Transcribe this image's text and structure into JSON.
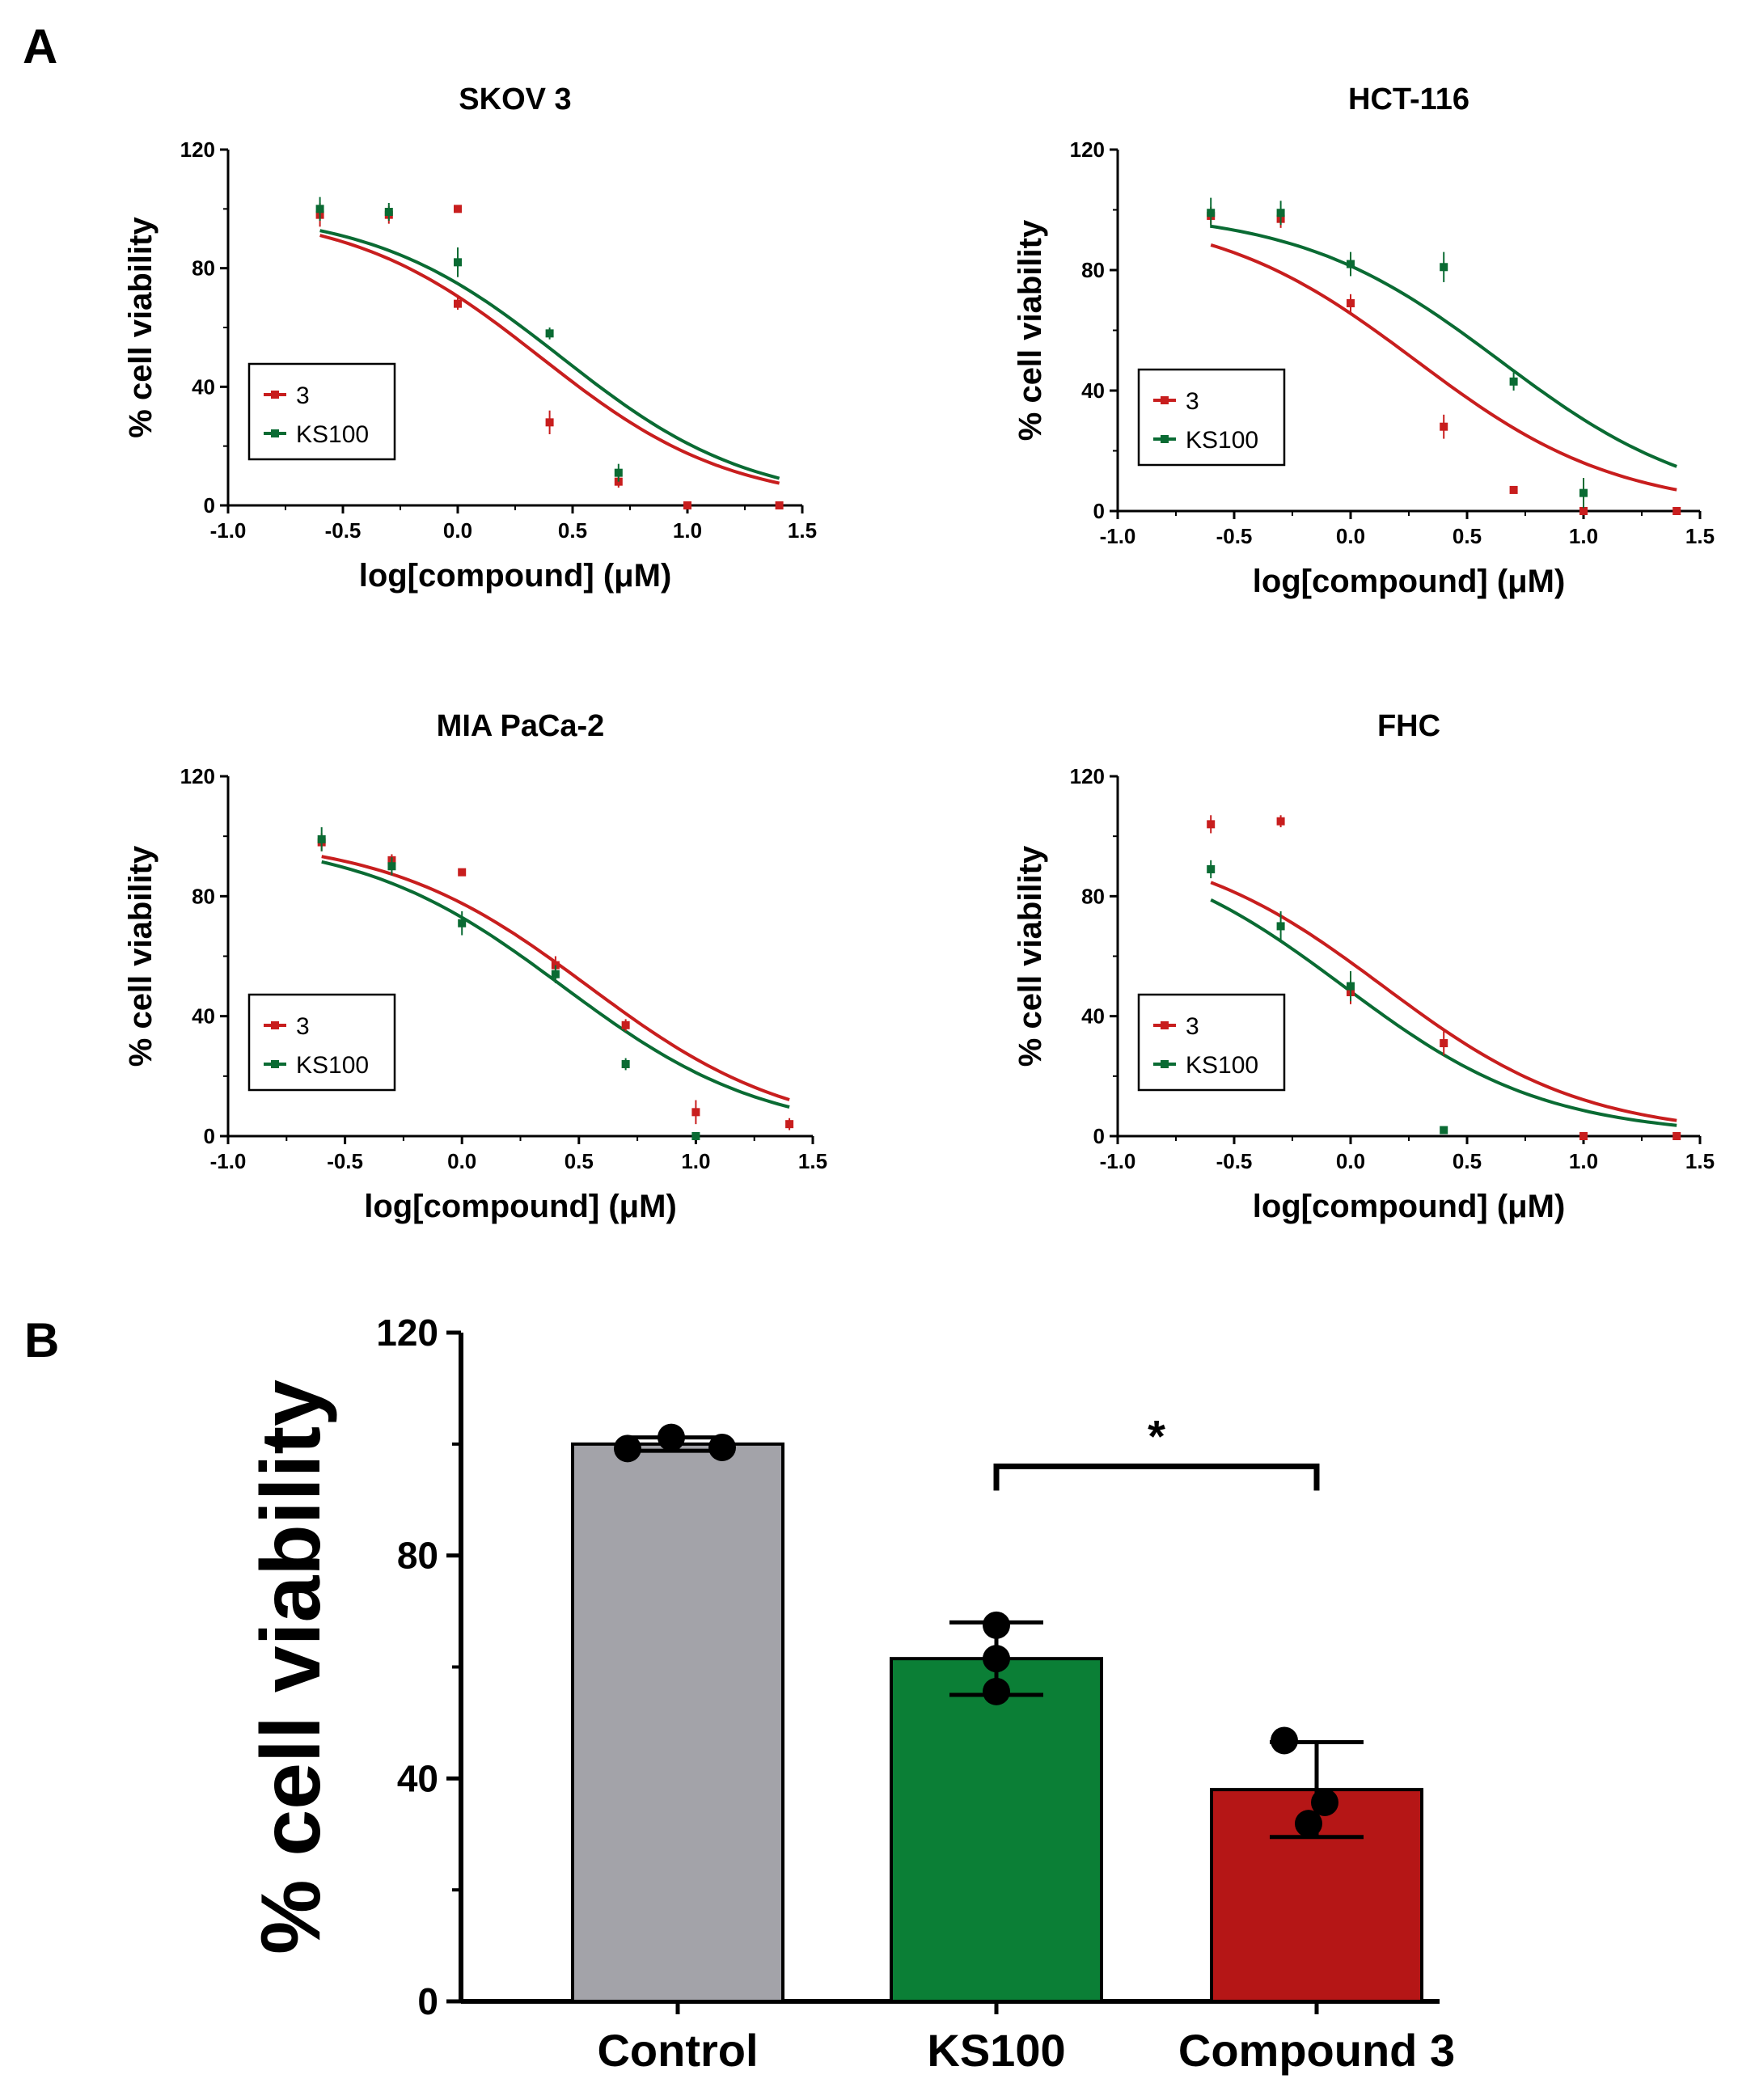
{
  "panels": {
    "a_label": "A",
    "b_label": "B"
  },
  "colors": {
    "red": "#c81e1e",
    "green": "#0a6b33",
    "control": "#a3a3a9",
    "ks100": "#0b7f36",
    "compound3": "#b51616"
  },
  "chart_data": [
    {
      "type": "scatter",
      "title": "SKOV 3",
      "xlabel": "log[compound] (μM)",
      "ylabel": "% cell viability",
      "xlim": [
        -1.0,
        1.5
      ],
      "ylim": [
        0,
        120
      ],
      "xticks": [
        "-1.0",
        "-0.5",
        "0.0",
        "0.5",
        "1.0",
        "1.5"
      ],
      "yticks": [
        "0",
        "40",
        "80",
        "120"
      ],
      "legend": [
        "3",
        "KS100"
      ],
      "series": [
        {
          "name": "3",
          "color": "#c81e1e",
          "ic50_log": 0.36,
          "hill": 1.05,
          "points": [
            {
              "x": -0.6,
              "y": 98,
              "err": 4
            },
            {
              "x": -0.3,
              "y": 98,
              "err": 3
            },
            {
              "x": 0.0,
              "y": 100,
              "err": 1
            },
            {
              "x": 0.0,
              "y": 68,
              "err": 2
            },
            {
              "x": 0.4,
              "y": 28,
              "err": 4
            },
            {
              "x": 0.7,
              "y": 8,
              "err": 2
            },
            {
              "x": 1.0,
              "y": 0,
              "err": 1
            },
            {
              "x": 1.4,
              "y": 0,
              "err": 1
            }
          ]
        },
        {
          "name": "KS100",
          "color": "#0a6b33",
          "ic50_log": 0.45,
          "hill": 1.05,
          "points": [
            {
              "x": -0.6,
              "y": 100,
              "err": 4
            },
            {
              "x": -0.3,
              "y": 99,
              "err": 3
            },
            {
              "x": 0.0,
              "y": 82,
              "err": 5
            },
            {
              "x": 0.4,
              "y": 58,
              "err": 2
            },
            {
              "x": 0.7,
              "y": 11,
              "err": 3
            }
          ]
        }
      ]
    },
    {
      "type": "scatter",
      "title": "HCT-116",
      "xlabel": "log[compound] (μM)",
      "ylabel": "% cell viability",
      "xlim": [
        -1.0,
        1.5
      ],
      "ylim": [
        0,
        120
      ],
      "xticks": [
        "-1.0",
        "-0.5",
        "0.0",
        "0.5",
        "1.0",
        "1.5"
      ],
      "yticks": [
        "0",
        "40",
        "80",
        "120"
      ],
      "legend": [
        "3",
        "KS100"
      ],
      "series": [
        {
          "name": "3",
          "color": "#c81e1e",
          "ic50_log": 0.28,
          "hill": 1.0,
          "points": [
            {
              "x": -0.6,
              "y": 98,
              "err": 3
            },
            {
              "x": -0.3,
              "y": 97,
              "err": 3
            },
            {
              "x": 0.0,
              "y": 69,
              "err": 3
            },
            {
              "x": 0.4,
              "y": 28,
              "err": 4
            },
            {
              "x": 0.7,
              "y": 7,
              "err": 1
            },
            {
              "x": 1.0,
              "y": 0,
              "err": 1
            },
            {
              "x": 1.4,
              "y": 0,
              "err": 1
            }
          ]
        },
        {
          "name": "KS100",
          "color": "#0a6b33",
          "ic50_log": 0.64,
          "hill": 1.0,
          "points": [
            {
              "x": -0.6,
              "y": 99,
              "err": 5
            },
            {
              "x": -0.3,
              "y": 99,
              "err": 4
            },
            {
              "x": 0.0,
              "y": 82,
              "err": 4
            },
            {
              "x": 0.4,
              "y": 81,
              "err": 5
            },
            {
              "x": 0.7,
              "y": 43,
              "err": 3
            },
            {
              "x": 1.0,
              "y": 6,
              "err": 5
            }
          ]
        }
      ]
    },
    {
      "type": "scatter",
      "title": "MIA PaCa-2",
      "xlabel": "log[compound] (μM)",
      "ylabel": "% cell viability",
      "xlim": [
        -1.0,
        1.5
      ],
      "ylim": [
        0,
        120
      ],
      "xticks": [
        "-1.0",
        "-0.5",
        "0.0",
        "0.5",
        "1.0",
        "1.5"
      ],
      "yticks": [
        "0",
        "40",
        "80",
        "120"
      ],
      "legend": [
        "3",
        "KS100"
      ],
      "series": [
        {
          "name": "3",
          "color": "#c81e1e",
          "ic50_log": 0.54,
          "hill": 1.0,
          "points": [
            {
              "x": -0.6,
              "y": 98,
              "err": 3
            },
            {
              "x": -0.3,
              "y": 92,
              "err": 2
            },
            {
              "x": 0.0,
              "y": 88,
              "err": 1
            },
            {
              "x": 0.4,
              "y": 57,
              "err": 3
            },
            {
              "x": 0.7,
              "y": 37,
              "err": 2
            },
            {
              "x": 1.0,
              "y": 8,
              "err": 4
            },
            {
              "x": 1.4,
              "y": 4,
              "err": 2
            }
          ]
        },
        {
          "name": "KS100",
          "color": "#0a6b33",
          "ic50_log": 0.43,
          "hill": 1.0,
          "points": [
            {
              "x": -0.6,
              "y": 99,
              "err": 4
            },
            {
              "x": -0.3,
              "y": 90,
              "err": 3
            },
            {
              "x": 0.0,
              "y": 71,
              "err": 4
            },
            {
              "x": 0.4,
              "y": 54,
              "err": 3
            },
            {
              "x": 0.7,
              "y": 24,
              "err": 2
            },
            {
              "x": 1.0,
              "y": 0,
              "err": 1
            }
          ]
        }
      ]
    },
    {
      "type": "scatter",
      "title": "FHC",
      "xlabel": "log[compound] (μM)",
      "ylabel": "% cell viability",
      "xlim": [
        -1.0,
        1.5
      ],
      "ylim": [
        0,
        120
      ],
      "xticks": [
        "-1.0",
        "-0.5",
        "0.0",
        "0.5",
        "1.0",
        "1.5"
      ],
      "yticks": [
        "0",
        "40",
        "80",
        "120"
      ],
      "legend": [
        "3",
        "KS100"
      ],
      "series": [
        {
          "name": "3",
          "color": "#c81e1e",
          "ic50_log": 0.14,
          "hill": 1.0,
          "points": [
            {
              "x": -0.6,
              "y": 104,
              "err": 3
            },
            {
              "x": -0.3,
              "y": 105,
              "err": 2
            },
            {
              "x": 0.0,
              "y": 48,
              "err": 4
            },
            {
              "x": 0.4,
              "y": 31,
              "err": 4
            },
            {
              "x": 1.0,
              "y": 0,
              "err": 1
            },
            {
              "x": 1.4,
              "y": 0,
              "err": 1
            }
          ]
        },
        {
          "name": "KS100",
          "color": "#0a6b33",
          "ic50_log": -0.03,
          "hill": 1.0,
          "points": [
            {
              "x": -0.6,
              "y": 89,
              "err": 3
            },
            {
              "x": -0.3,
              "y": 70,
              "err": 5
            },
            {
              "x": 0.0,
              "y": 50,
              "err": 5
            },
            {
              "x": 0.4,
              "y": 2,
              "err": 1
            }
          ]
        }
      ]
    },
    {
      "type": "bar",
      "title": "",
      "xlabel": "",
      "ylabel": "% cell viability",
      "ylim": [
        0,
        120
      ],
      "yticks": [
        "0",
        "40",
        "80",
        "120"
      ],
      "categories": [
        "Control",
        "KS100",
        "Compound 3"
      ],
      "values": [
        100,
        61.5,
        38
      ],
      "errors": [
        1.2,
        6.5,
        8.5
      ],
      "bar_colors": [
        "#a3a3a9",
        "#0b7f36",
        "#b51616"
      ],
      "points": [
        [
          99.2,
          101.2,
          99.4
        ],
        [
          67.5,
          61.5,
          55.6
        ],
        [
          46.8,
          35.7,
          31.9
        ]
      ],
      "significance": {
        "from": "KS100",
        "to": "Compound 3",
        "label": "*",
        "y": 96
      }
    }
  ]
}
